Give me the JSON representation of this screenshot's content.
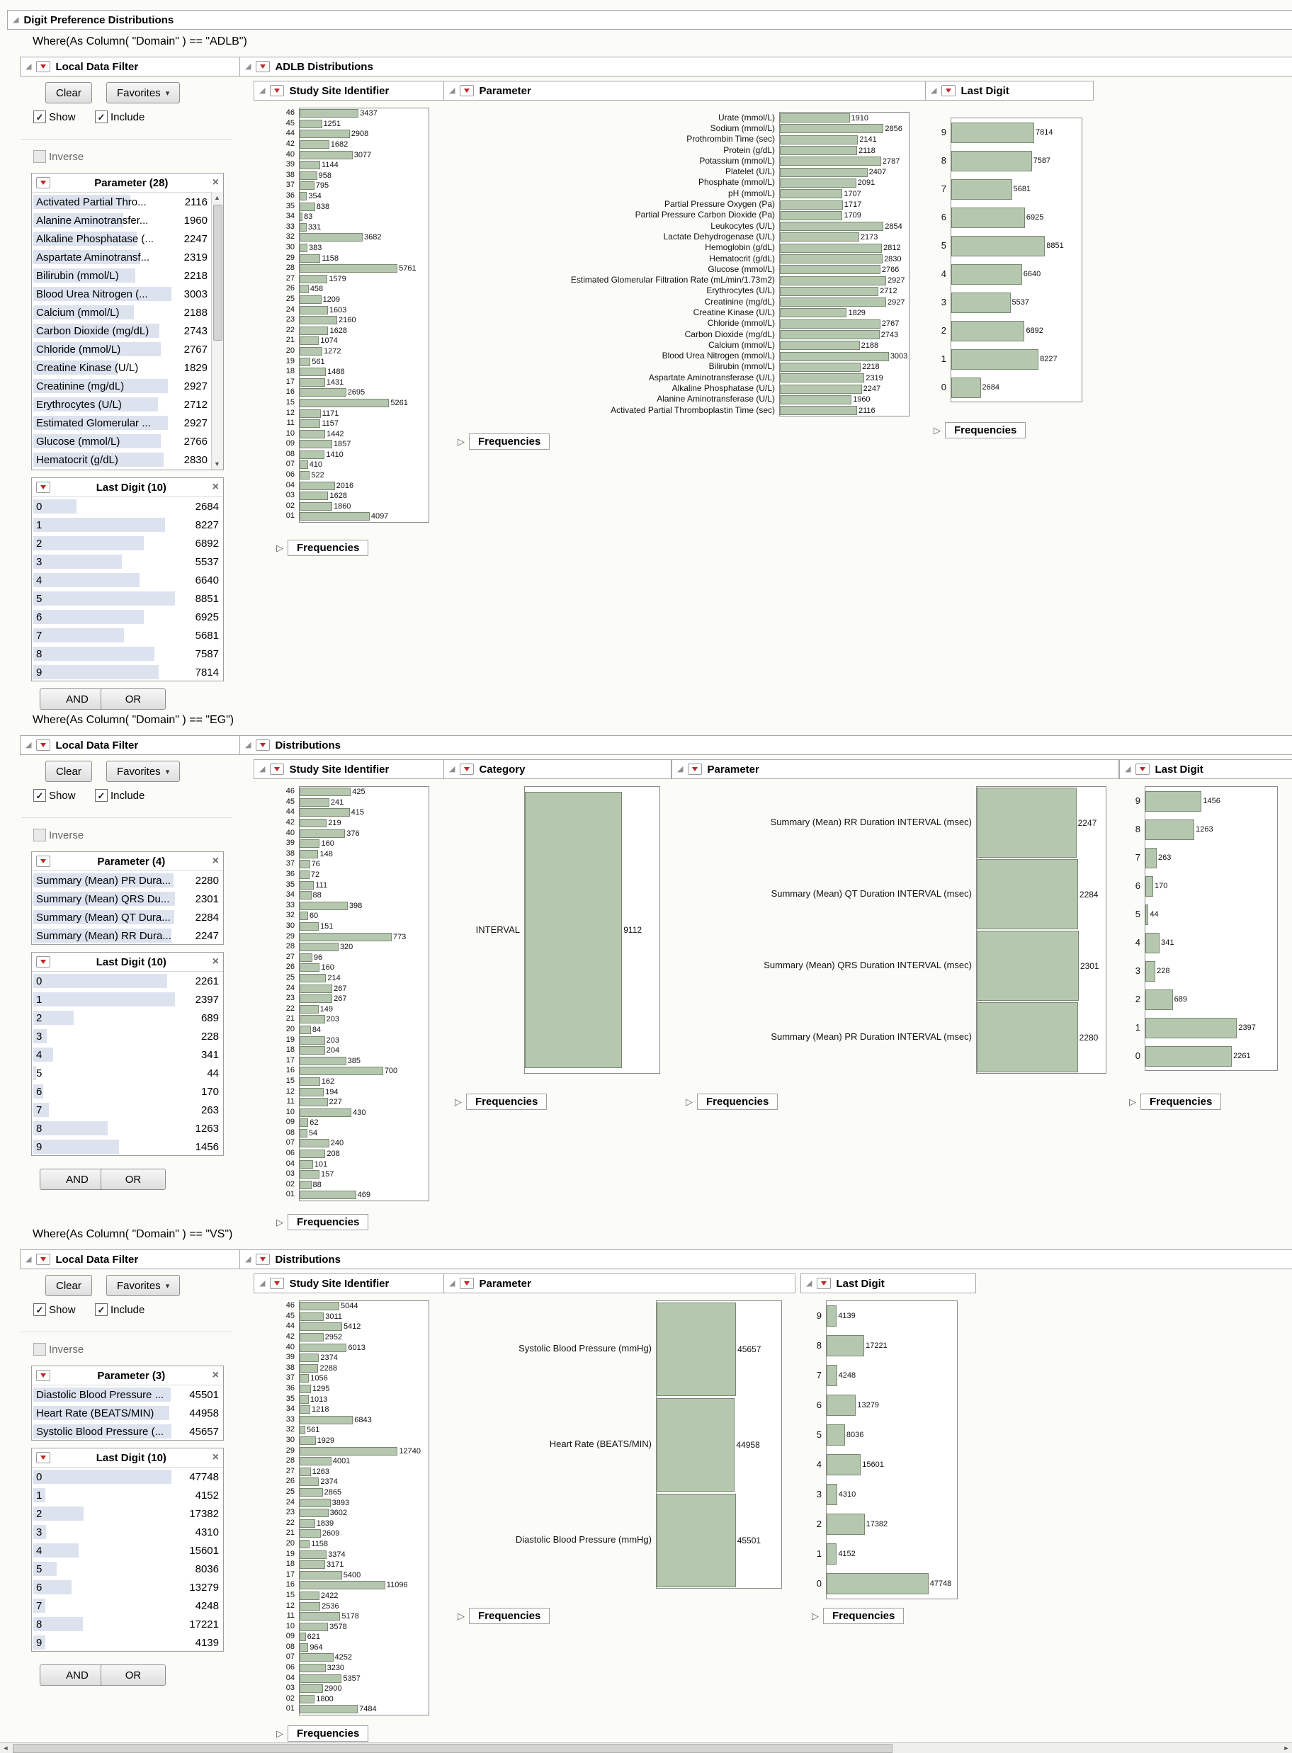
{
  "app": {
    "title": "Digit Preference Distributions"
  },
  "labels": {
    "local_data_filter": "Local Data Filter",
    "adlb_distributions": "ADLB Distributions",
    "distributions": "Distributions",
    "study_site": "Study Site Identifier",
    "parameter": "Parameter",
    "category": "Category",
    "last_digit": "Last Digit",
    "frequencies": "Frequencies",
    "clear": "Clear",
    "favorites": "Favorites",
    "show": "Show",
    "include": "Include",
    "inverse": "Inverse",
    "and": "AND",
    "or": "OR"
  },
  "where": {
    "adlb": "Where(As Column( \"Domain\" ) == \"ADLB\")",
    "eg": "Where(As Column( \"Domain\" ) == \"EG\")",
    "vs": "Where(As Column( \"Domain\" ) == \"VS\")"
  },
  "colors": {
    "bar_fill": "#b5c7ae",
    "bar_border": "#78886f",
    "filter_bar": "#dce2ee",
    "red_triangle": "#c22525"
  },
  "filters": {
    "adlb": {
      "param_header": "Parameter (28)",
      "param_items": [
        {
          "label": "Activated Partial Thro...",
          "count": "2116"
        },
        {
          "label": "Alanine Aminotransfer...",
          "count": "1960"
        },
        {
          "label": "Alkaline Phosphatase (...",
          "count": "2247"
        },
        {
          "label": "Aspartate Aminotransf...",
          "count": "2319"
        },
        {
          "label": "Bilirubin (mmol/L)",
          "count": "2218"
        },
        {
          "label": "Blood Urea Nitrogen (...",
          "count": "3003"
        },
        {
          "label": "Calcium (mmol/L)",
          "count": "2188"
        },
        {
          "label": "Carbon Dioxide (mg/dL)",
          "count": "2743"
        },
        {
          "label": "Chloride (mmol/L)",
          "count": "2767"
        },
        {
          "label": "Creatine Kinase (U/L)",
          "count": "1829"
        },
        {
          "label": "Creatinine (mg/dL)",
          "count": "2927"
        },
        {
          "label": "Erythrocytes (U/L)",
          "count": "2712"
        },
        {
          "label": "Estimated Glomerular ...",
          "count": "2927"
        },
        {
          "label": "Glucose (mmol/L)",
          "count": "2766"
        },
        {
          "label": "Hematocrit (g/dL)",
          "count": "2830"
        }
      ],
      "lastdigit_header": "Last Digit (10)",
      "lastdigit_items": [
        {
          "label": "0",
          "count": "2684"
        },
        {
          "label": "1",
          "count": "8227"
        },
        {
          "label": "2",
          "count": "6892"
        },
        {
          "label": "3",
          "count": "5537"
        },
        {
          "label": "4",
          "count": "6640"
        },
        {
          "label": "5",
          "count": "8851"
        },
        {
          "label": "6",
          "count": "6925"
        },
        {
          "label": "7",
          "count": "5681"
        },
        {
          "label": "8",
          "count": "7587"
        },
        {
          "label": "9",
          "count": "7814"
        }
      ]
    },
    "eg": {
      "param_header": "Parameter (4)",
      "param_items": [
        {
          "label": "Summary (Mean) PR Dura...",
          "count": "2280"
        },
        {
          "label": "Summary (Mean) QRS Du...",
          "count": "2301"
        },
        {
          "label": "Summary (Mean) QT Dura...",
          "count": "2284"
        },
        {
          "label": "Summary (Mean) RR Dura...",
          "count": "2247"
        }
      ],
      "lastdigit_header": "Last Digit (10)",
      "lastdigit_items": [
        {
          "label": "0",
          "count": "2261"
        },
        {
          "label": "1",
          "count": "2397"
        },
        {
          "label": "2",
          "count": "689"
        },
        {
          "label": "3",
          "count": "228"
        },
        {
          "label": "4",
          "count": "341"
        },
        {
          "label": "5",
          "count": "44"
        },
        {
          "label": "6",
          "count": "170"
        },
        {
          "label": "7",
          "count": "263"
        },
        {
          "label": "8",
          "count": "1263"
        },
        {
          "label": "9",
          "count": "1456"
        }
      ]
    },
    "vs": {
      "param_header": "Parameter (3)",
      "param_items": [
        {
          "label": "Diastolic Blood Pressure ...",
          "count": "45501"
        },
        {
          "label": "Heart Rate (BEATS/MIN)",
          "count": "44958"
        },
        {
          "label": "Systolic Blood Pressure (...",
          "count": "45657"
        }
      ],
      "lastdigit_header": "Last Digit (10)",
      "lastdigit_items": [
        {
          "label": "0",
          "count": "47748"
        },
        {
          "label": "1",
          "count": "4152"
        },
        {
          "label": "2",
          "count": "17382"
        },
        {
          "label": "3",
          "count": "4310"
        },
        {
          "label": "4",
          "count": "15601"
        },
        {
          "label": "5",
          "count": "8036"
        },
        {
          "label": "6",
          "count": "13279"
        },
        {
          "label": "7",
          "count": "4248"
        },
        {
          "label": "8",
          "count": "17221"
        },
        {
          "label": "9",
          "count": "4139"
        }
      ]
    }
  },
  "chart_data": {
    "adlb_sites": {
      "type": "bar",
      "orientation": "horizontal",
      "title": "Study Site Identifier",
      "xmax": 7700,
      "categories": [
        "46",
        "45",
        "44",
        "42",
        "40",
        "39",
        "38",
        "37",
        "36",
        "35",
        "34",
        "33",
        "32",
        "30",
        "29",
        "28",
        "27",
        "26",
        "25",
        "24",
        "23",
        "22",
        "21",
        "20",
        "19",
        "18",
        "17",
        "16",
        "15",
        "12",
        "11",
        "10",
        "09",
        "08",
        "07",
        "06",
        "04",
        "03",
        "02",
        "01"
      ],
      "values": [
        3437,
        1251,
        2908,
        1682,
        3077,
        1144,
        958,
        795,
        354,
        838,
        83,
        331,
        3682,
        383,
        1158,
        5761,
        1579,
        458,
        1209,
        1603,
        2160,
        1628,
        1074,
        1272,
        561,
        1488,
        1431,
        2695,
        5261,
        1171,
        1157,
        1442,
        1857,
        1410,
        410,
        522,
        2016,
        1628,
        1860,
        4097
      ]
    },
    "adlb_parameter": {
      "type": "bar",
      "orientation": "horizontal",
      "title": "Parameter",
      "xmax": 3600,
      "categories": [
        "Urate (mmol/L)",
        "Sodium (mmol/L)",
        "Prothrombin Time (sec)",
        "Protein (g/dL)",
        "Potassium (mmol/L)",
        "Platelet (U/L)",
        "Phosphate (mmol/L)",
        "pH (mmol/L)",
        "Partial Pressure Oxygen (Pa)",
        "Partial Pressure Carbon Dioxide (Pa)",
        "Leukocytes (U/L)",
        "Lactate Dehydrogenase (U/L)",
        "Hemoglobin (g/dL)",
        "Hematocrit (g/dL)",
        "Glucose (mmol/L)",
        "Estimated Glomerular Filtration Rate (mL/min/1.73m2)",
        "Erythrocytes (U/L)",
        "Creatinine (mg/dL)",
        "Creatine Kinase (U/L)",
        "Chloride (mmol/L)",
        "Carbon Dioxide (mg/dL)",
        "Calcium (mmol/L)",
        "Blood Urea Nitrogen (mmol/L)",
        "Bilirubin (mmol/L)",
        "Aspartate Aminotransferase (U/L)",
        "Alkaline Phosphatase (U/L)",
        "Alanine Aminotransferase (U/L)",
        "Activated Partial Thromboplastin Time (sec)"
      ],
      "values": [
        1910,
        2856,
        2141,
        2118,
        2787,
        2407,
        2091,
        1707,
        1717,
        1709,
        2854,
        2173,
        2812,
        2830,
        2766,
        2927,
        2712,
        2927,
        1829,
        2767,
        2743,
        2188,
        3003,
        2218,
        2319,
        2247,
        1960,
        2116
      ]
    },
    "adlb_lastdigit": {
      "type": "bar",
      "orientation": "horizontal",
      "title": "Last Digit",
      "xmax": 12500,
      "categories": [
        "9",
        "8",
        "7",
        "6",
        "5",
        "4",
        "3",
        "2",
        "1",
        "0"
      ],
      "values": [
        7814,
        7587,
        5681,
        6925,
        8851,
        6640,
        5537,
        6892,
        8227,
        2684
      ]
    },
    "eg_sites": {
      "type": "bar",
      "orientation": "horizontal",
      "title": "Study Site Identifier",
      "xmax": 1100,
      "categories": [
        "46",
        "45",
        "44",
        "42",
        "40",
        "39",
        "38",
        "37",
        "36",
        "35",
        "34",
        "33",
        "32",
        "30",
        "29",
        "28",
        "27",
        "26",
        "25",
        "24",
        "23",
        "22",
        "21",
        "20",
        "19",
        "18",
        "17",
        "16",
        "15",
        "12",
        "11",
        "10",
        "09",
        "08",
        "07",
        "06",
        "04",
        "03",
        "02",
        "01"
      ],
      "values": [
        425,
        241,
        415,
        219,
        376,
        160,
        148,
        76,
        72,
        111,
        88,
        398,
        60,
        151,
        773,
        320,
        96,
        160,
        214,
        267,
        267,
        149,
        203,
        84,
        203,
        204,
        385,
        700,
        162,
        194,
        227,
        430,
        62,
        54,
        240,
        208,
        101,
        157,
        88,
        469
      ]
    },
    "eg_category": {
      "type": "bar",
      "orientation": "horizontal",
      "title": "Category",
      "xmax": 12800,
      "categories": [
        "INTERVAL"
      ],
      "values": [
        9112
      ]
    },
    "eg_parameter": {
      "type": "bar",
      "orientation": "horizontal",
      "title": "Parameter",
      "xmax": 2950,
      "categories": [
        "Summary (Mean) RR Duration INTERVAL (msec)",
        "Summary (Mean) QT Duration INTERVAL (msec)",
        "Summary (Mean) QRS Duration INTERVAL (msec)",
        "Summary (Mean) PR Duration INTERVAL (msec)"
      ],
      "values": [
        2247,
        2284,
        2301,
        2280
      ]
    },
    "eg_lastdigit": {
      "type": "bar",
      "orientation": "horizontal",
      "title": "Last Digit",
      "xmax": 3500,
      "categories": [
        "9",
        "8",
        "7",
        "6",
        "5",
        "4",
        "3",
        "2",
        "1",
        "0"
      ],
      "values": [
        1456,
        1263,
        263,
        170,
        44,
        341,
        228,
        689,
        2397,
        2261
      ]
    },
    "vs_sites": {
      "type": "bar",
      "orientation": "horizontal",
      "title": "Study Site Identifier",
      "xmax": 17000,
      "categories": [
        "46",
        "45",
        "44",
        "42",
        "40",
        "39",
        "38",
        "37",
        "36",
        "35",
        "34",
        "33",
        "32",
        "30",
        "29",
        "28",
        "27",
        "26",
        "25",
        "24",
        "23",
        "22",
        "21",
        "20",
        "19",
        "18",
        "17",
        "16",
        "15",
        "12",
        "11",
        "10",
        "09",
        "08",
        "07",
        "06",
        "04",
        "03",
        "02",
        "01"
      ],
      "values": [
        5044,
        3011,
        5412,
        2952,
        6013,
        2374,
        2288,
        1056,
        1295,
        1013,
        1218,
        6843,
        561,
        1929,
        12740,
        4001,
        1263,
        2374,
        2865,
        3893,
        3602,
        1839,
        2609,
        1158,
        3374,
        3171,
        5400,
        11096,
        2422,
        2536,
        5178,
        3578,
        621,
        964,
        4252,
        3230,
        5357,
        2900,
        1800,
        7484
      ]
    },
    "vs_parameter": {
      "type": "bar",
      "orientation": "horizontal",
      "title": "Parameter",
      "xmax": 73000,
      "categories": [
        "Systolic Blood Pressure (mmHg)",
        "Heart Rate (BEATS/MIN)",
        "Diastolic Blood Pressure (mmHg)"
      ],
      "values": [
        45657,
        44958,
        45501
      ]
    },
    "vs_lastdigit": {
      "type": "bar",
      "orientation": "horizontal",
      "title": "Last Digit",
      "xmax": 62000,
      "categories": [
        "9",
        "8",
        "7",
        "6",
        "5",
        "4",
        "3",
        "2",
        "1",
        "0"
      ],
      "values": [
        4139,
        17221,
        4248,
        13279,
        8036,
        15601,
        4310,
        17382,
        4152,
        47748
      ]
    }
  }
}
